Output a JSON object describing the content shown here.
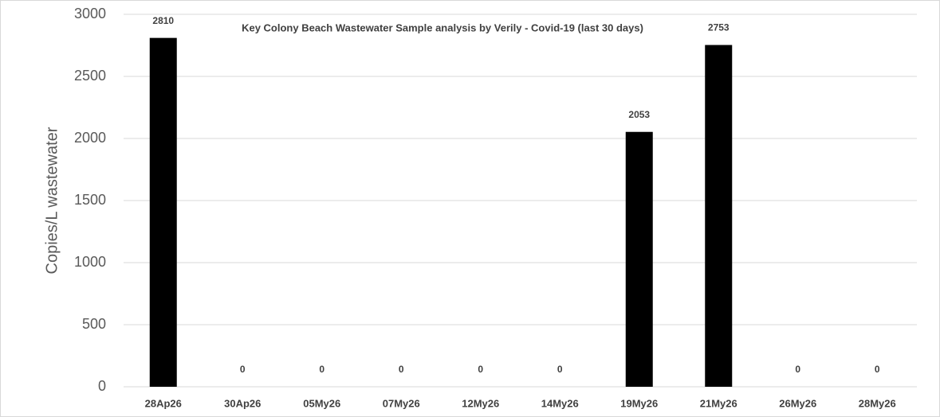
{
  "chart_data": {
    "type": "bar",
    "title": "Key Colony Beach Wastewater Sample analysis by Verily - Covid-19 (last 30 days)",
    "y_label": "Copies/L wastewater",
    "categories": [
      "28Ap26",
      "30Ap26",
      "05My26",
      "07My26",
      "12My26",
      "14My26",
      "19My26",
      "21My26",
      "26My26",
      "28My26"
    ],
    "values": [
      2810,
      0,
      0,
      0,
      0,
      0,
      2053,
      2753,
      0,
      0
    ],
    "color": "#000000",
    "ylim": [
      0,
      3000
    ],
    "yticks": [
      0,
      500,
      1000,
      1500,
      2000,
      2500,
      3000
    ],
    "grid": true
  }
}
